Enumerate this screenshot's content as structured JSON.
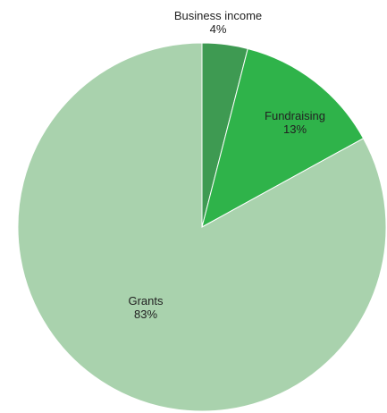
{
  "chart_data": {
    "type": "pie",
    "title": "",
    "start_angle_deg": 0,
    "direction": "clockwise",
    "slices": [
      {
        "label": "Business income",
        "percent_label": "4%",
        "value": 4,
        "color": "#3e9a52"
      },
      {
        "label": "Fundraising",
        "percent_label": "13%",
        "value": 13,
        "color": "#2fb34a"
      },
      {
        "label": "Grants",
        "percent_label": "83%",
        "value": 83,
        "color": "#a9d2ad"
      }
    ]
  }
}
